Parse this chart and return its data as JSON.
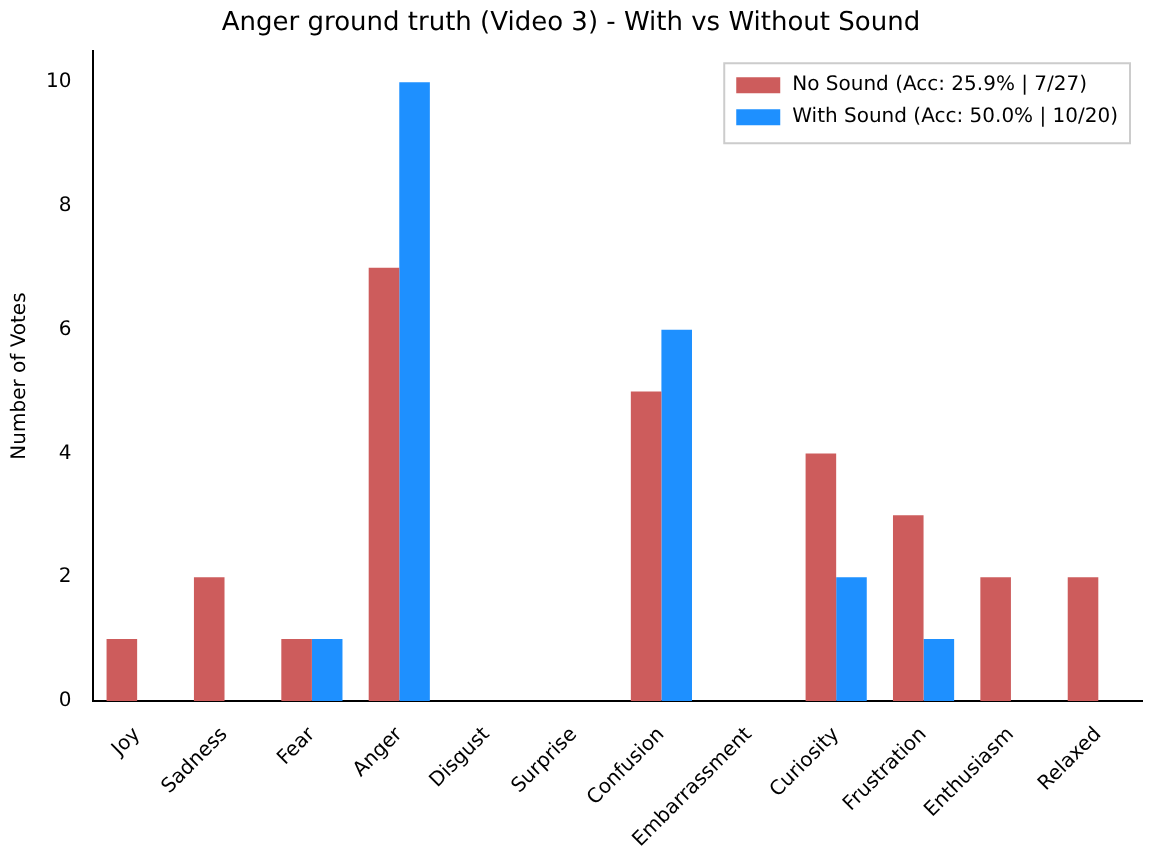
{
  "chart_data": {
    "type": "bar",
    "title": "Anger ground truth (Video 3) - With vs Without Sound",
    "ylabel": "Number of Votes",
    "categories": [
      "Joy",
      "Sadness",
      "Fear",
      "Anger",
      "Disgust",
      "Surprise",
      "Confusion",
      "Embarrassment",
      "Curiosity",
      "Frustration",
      "Enthusiasm",
      "Relaxed"
    ],
    "series": [
      {
        "name": "No Sound (Acc: 25.9% | 7/27)",
        "color": "#cd5c5c",
        "values": [
          1,
          2,
          1,
          7,
          0,
          0,
          5,
          0,
          4,
          3,
          2,
          2
        ]
      },
      {
        "name": "With Sound (Acc: 50.0% | 10/20)",
        "color": "#1e90ff",
        "values": [
          0,
          0,
          1,
          10,
          0,
          0,
          6,
          0,
          2,
          1,
          0,
          0
        ]
      }
    ],
    "ylim": [
      0,
      10.5
    ],
    "yticks": [
      0,
      2,
      4,
      6,
      8,
      10
    ],
    "grid": false,
    "legend": "top right"
  }
}
